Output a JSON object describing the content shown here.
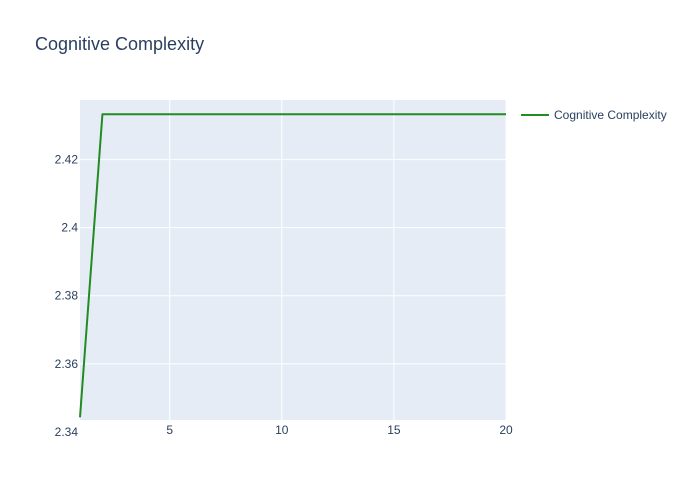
{
  "chart_data": {
    "type": "line",
    "title": "Cognitive Complexity",
    "xlabel": "",
    "ylabel": "",
    "xlim": [
      1,
      20
    ],
    "ylim": [
      2.3435,
      2.4375
    ],
    "x_ticks": [
      5,
      10,
      15,
      20
    ],
    "y_ticks": [
      2.34,
      2.36,
      2.38,
      2.4,
      2.42
    ],
    "x_tick_labels": [
      "5",
      "10",
      "15",
      "20"
    ],
    "y_tick_labels": [
      "2.34",
      "2.36",
      "2.38",
      "2.4",
      "2.42"
    ],
    "grid": true,
    "legend_position": "top-right outside",
    "colors": {
      "plot_background": "#e5ecf6",
      "grid": "#ffffff",
      "text": "#2a3f5f",
      "series": "#228b22"
    },
    "series": [
      {
        "name": "Cognitive Complexity",
        "x": [
          1,
          2,
          3,
          4,
          5,
          6,
          7,
          8,
          9,
          10,
          11,
          12,
          13,
          14,
          15,
          16,
          17,
          18,
          19,
          20
        ],
        "y": [
          2.3443,
          2.4333,
          2.4333,
          2.4333,
          2.4333,
          2.4333,
          2.4333,
          2.4333,
          2.4333,
          2.4333,
          2.4333,
          2.4333,
          2.4333,
          2.4333,
          2.4333,
          2.4333,
          2.4333,
          2.4333,
          2.4333,
          2.4333
        ]
      }
    ]
  }
}
